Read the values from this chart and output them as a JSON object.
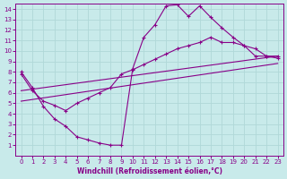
{
  "xlabel": "Windchill (Refroidissement éolien,°C)",
  "xlim": [
    -0.5,
    23.5
  ],
  "ylim": [
    0,
    14.5
  ],
  "xticks": [
    0,
    1,
    2,
    3,
    4,
    5,
    6,
    7,
    8,
    9,
    10,
    11,
    12,
    13,
    14,
    15,
    16,
    17,
    18,
    19,
    20,
    21,
    22,
    23
  ],
  "yticks": [
    1,
    2,
    3,
    4,
    5,
    6,
    7,
    8,
    9,
    10,
    11,
    12,
    13,
    14
  ],
  "bg_color": "#c8eaea",
  "grid_color": "#b0d8d8",
  "line_color": "#880088",
  "curve1_x": [
    0,
    1,
    2,
    3,
    4,
    5,
    6,
    7,
    8,
    9,
    10,
    11,
    12,
    13,
    14,
    15,
    16,
    17,
    18,
    19,
    20,
    21,
    22,
    23
  ],
  "curve1_y": [
    8.0,
    6.5,
    4.7,
    3.5,
    2.8,
    1.8,
    1.5,
    1.2,
    1.0,
    1.0,
    8.3,
    11.3,
    12.5,
    14.3,
    14.4,
    13.3,
    14.3,
    13.2,
    12.2,
    11.3,
    10.5,
    10.2,
    9.5,
    9.3
  ],
  "curve2_x": [
    0,
    1,
    2,
    3,
    4,
    5,
    6,
    7,
    8,
    9,
    10,
    11,
    12,
    13,
    14,
    15,
    16,
    17,
    18,
    19,
    20,
    21,
    22,
    23
  ],
  "curve2_y": [
    7.8,
    6.2,
    5.2,
    4.8,
    4.3,
    5.0,
    5.5,
    6.0,
    6.5,
    7.8,
    8.2,
    8.7,
    9.2,
    9.7,
    10.2,
    10.5,
    10.8,
    11.3,
    10.8,
    10.8,
    10.5,
    9.5,
    9.5,
    9.5
  ],
  "curve3_x": [
    0,
    23
  ],
  "curve3_y": [
    6.2,
    9.5
  ],
  "curve4_x": [
    0,
    23
  ],
  "curve4_y": [
    5.2,
    8.8
  ]
}
